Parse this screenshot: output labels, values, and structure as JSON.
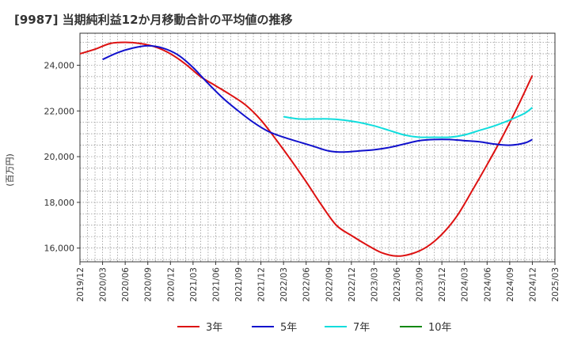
{
  "chart_data": {
    "type": "line",
    "title": "[9987]  当期純利益12か月移動合計の平均値の推移",
    "ylabel": "(百万円)",
    "xlabel": "",
    "ylim": [
      15400,
      25400
    ],
    "yticks": [
      16000,
      18000,
      20000,
      22000,
      24000
    ],
    "ytick_labels": [
      "16,000",
      "18,000",
      "20,000",
      "22,000",
      "24,000"
    ],
    "xticks": [
      "2019/12",
      "2020/03",
      "2020/06",
      "2020/09",
      "2020/12",
      "2021/03",
      "2021/06",
      "2021/09",
      "2021/12",
      "2022/03",
      "2022/06",
      "2022/09",
      "2022/12",
      "2023/03",
      "2023/06",
      "2023/09",
      "2023/12",
      "2024/03",
      "2024/06",
      "2024/09",
      "2024/12",
      "2025/03"
    ],
    "grid": true,
    "legend_position": "bottom",
    "series": [
      {
        "name": "3年",
        "color": "#dd1111",
        "x": [
          "2019/12",
          "2020/02",
          "2020/04",
          "2020/06",
          "2020/08",
          "2020/10",
          "2020/12",
          "2021/02",
          "2021/04",
          "2021/06",
          "2021/08",
          "2021/10",
          "2021/12",
          "2022/02",
          "2022/04",
          "2022/06",
          "2022/08",
          "2022/10",
          "2022/12",
          "2023/02",
          "2023/04",
          "2023/06",
          "2023/08",
          "2023/10",
          "2023/12",
          "2024/02",
          "2024/04",
          "2024/06",
          "2024/08",
          "2024/10",
          "2024/12"
        ],
        "values": [
          24500,
          24700,
          24950,
          25000,
          24950,
          24800,
          24500,
          24050,
          23500,
          23100,
          22700,
          22250,
          21600,
          20750,
          19850,
          18900,
          17900,
          17000,
          16550,
          16150,
          15800,
          15650,
          15750,
          16050,
          16600,
          17400,
          18500,
          19650,
          20850,
          22150,
          23550
        ]
      },
      {
        "name": "5年",
        "color": "#1111cc",
        "x": [
          "2020/03",
          "2020/05",
          "2020/07",
          "2020/09",
          "2020/11",
          "2021/01",
          "2021/03",
          "2021/05",
          "2021/07",
          "2021/09",
          "2021/11",
          "2022/01",
          "2022/03",
          "2022/05",
          "2022/07",
          "2022/09",
          "2022/11",
          "2023/01",
          "2023/03",
          "2023/05",
          "2023/07",
          "2023/09",
          "2023/11",
          "2024/01",
          "2024/03",
          "2024/05",
          "2024/07",
          "2024/09",
          "2024/11",
          "2024/12"
        ],
        "values": [
          24250,
          24550,
          24750,
          24850,
          24750,
          24450,
          23900,
          23200,
          22550,
          22000,
          21500,
          21100,
          20850,
          20650,
          20450,
          20250,
          20200,
          20250,
          20300,
          20400,
          20550,
          20700,
          20750,
          20750,
          20700,
          20650,
          20550,
          20500,
          20600,
          20750
        ]
      },
      {
        "name": "7年",
        "color": "#11dddd",
        "x": [
          "2022/03",
          "2022/05",
          "2022/07",
          "2022/09",
          "2022/11",
          "2023/01",
          "2023/03",
          "2023/05",
          "2023/07",
          "2023/09",
          "2023/11",
          "2024/01",
          "2024/03",
          "2024/05",
          "2024/07",
          "2024/09",
          "2024/11",
          "2024/12"
        ],
        "values": [
          21750,
          21650,
          21650,
          21650,
          21600,
          21500,
          21350,
          21150,
          20950,
          20850,
          20850,
          20850,
          20950,
          21150,
          21350,
          21600,
          21900,
          22150
        ]
      },
      {
        "name": "10年",
        "color": "#118811",
        "x": [],
        "values": []
      }
    ]
  }
}
